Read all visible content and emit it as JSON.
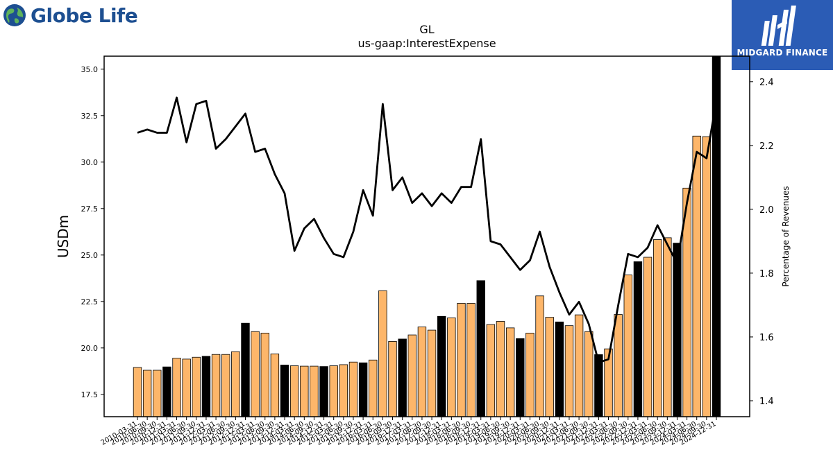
{
  "logos": {
    "left": {
      "text": "Globe Life",
      "color": "#1d4f91"
    },
    "right": {
      "text": "MIDGARD FINANCE",
      "background": "#2b5cb5"
    }
  },
  "chart_data": {
    "type": "bar",
    "title": "GL",
    "subtitle": "us-gaap:InterestExpense",
    "ylabel": "USDm",
    "y2label": "Percentage of Revenues",
    "ylim": [
      16.3,
      35.7
    ],
    "y2lim": [
      1.35,
      2.48
    ],
    "yticks": [
      "17.5",
      "20.0",
      "22.5",
      "25.0",
      "27.5",
      "30.0",
      "32.5",
      "35.0"
    ],
    "y2ticks": [
      "1.4",
      "1.6",
      "1.8",
      "2.0",
      "2.2",
      "2.4"
    ],
    "grid": false,
    "categories": [
      "2010-03-31",
      "2010-06-30",
      "2010-09-30",
      "2010-12-31",
      "2011-03-31",
      "2011-06-30",
      "2011-09-30",
      "2011-12-31",
      "2012-03-31",
      "2012-06-30",
      "2012-09-30",
      "2012-12-31",
      "2013-03-31",
      "2013-06-30",
      "2013-09-30",
      "2013-12-31",
      "2014-03-31",
      "2014-06-30",
      "2014-09-30",
      "2014-12-31",
      "2015-03-31",
      "2015-06-30",
      "2015-09-30",
      "2015-12-31",
      "2016-03-31",
      "2016-06-30",
      "2016-09-30",
      "2016-12-31",
      "2017-03-31",
      "2017-06-30",
      "2017-09-30",
      "2017-12-31",
      "2018-03-31",
      "2018-06-30",
      "2018-09-30",
      "2018-12-31",
      "2019-03-31",
      "2019-06-30",
      "2019-09-30",
      "2019-12-31",
      "2020-03-31",
      "2020-06-30",
      "2020-09-30",
      "2020-12-31",
      "2021-03-31",
      "2021-06-30",
      "2021-09-30",
      "2021-12-31",
      "2022-03-31",
      "2022-06-30",
      "2022-09-30",
      "2022-12-31",
      "2023-03-31",
      "2023-06-30",
      "2023-09-30",
      "2023-12-31",
      "2024-03-31",
      "2024-06-30",
      "2024-09-30",
      "2024-12-31"
    ],
    "series": [
      {
        "type": "bar",
        "axis": "left",
        "values": [
          18.95,
          18.8,
          18.8,
          18.98,
          19.45,
          19.4,
          19.5,
          19.55,
          19.65,
          19.65,
          19.8,
          21.33,
          20.88,
          20.8,
          19.68,
          19.08,
          19.04,
          19.02,
          19.02,
          19.0,
          19.04,
          19.1,
          19.24,
          19.2,
          19.35,
          23.08,
          20.35,
          20.48,
          20.7,
          21.13,
          20.96,
          21.7,
          21.62,
          22.4,
          22.4,
          23.62,
          21.26,
          21.43,
          21.08,
          20.5,
          20.8,
          22.8,
          21.65,
          21.4,
          21.2,
          21.78,
          20.88,
          19.64,
          19.95,
          21.8,
          23.93,
          24.64,
          24.88,
          25.83,
          25.93,
          25.64,
          28.6,
          31.4,
          31.37,
          35.9
        ],
        "colors": [
          "#fdb66a",
          "#fdb66a",
          "#fdb66a",
          "#000000",
          "#fdb66a",
          "#fdb66a",
          "#fdb66a",
          "#000000",
          "#fdb66a",
          "#fdb66a",
          "#fdb66a",
          "#000000",
          "#fdb66a",
          "#fdb66a",
          "#fdb66a",
          "#000000",
          "#fdb66a",
          "#fdb66a",
          "#fdb66a",
          "#000000",
          "#fdb66a",
          "#fdb66a",
          "#fdb66a",
          "#000000",
          "#fdb66a",
          "#fdb66a",
          "#fdb66a",
          "#000000",
          "#fdb66a",
          "#fdb66a",
          "#fdb66a",
          "#000000",
          "#fdb66a",
          "#fdb66a",
          "#fdb66a",
          "#000000",
          "#fdb66a",
          "#fdb66a",
          "#fdb66a",
          "#000000",
          "#fdb66a",
          "#fdb66a",
          "#fdb66a",
          "#000000",
          "#fdb66a",
          "#fdb66a",
          "#fdb66a",
          "#000000",
          "#fdb66a",
          "#fdb66a",
          "#fdb66a",
          "#000000",
          "#fdb66a",
          "#fdb66a",
          "#fdb66a",
          "#000000",
          "#fdb66a",
          "#fdb66a",
          "#fdb66a",
          "#000000"
        ]
      },
      {
        "type": "line",
        "axis": "right",
        "color": "#000000",
        "values": [
          2.24,
          2.25,
          2.24,
          2.24,
          2.35,
          2.21,
          2.33,
          2.34,
          2.19,
          2.22,
          2.26,
          2.3,
          2.18,
          2.19,
          2.11,
          2.05,
          1.87,
          1.94,
          1.97,
          1.91,
          1.86,
          1.85,
          1.93,
          2.06,
          1.98,
          2.33,
          2.06,
          2.1,
          2.02,
          2.05,
          2.01,
          2.05,
          2.02,
          2.07,
          2.07,
          2.22,
          1.9,
          1.89,
          1.85,
          1.81,
          1.84,
          1.93,
          1.82,
          1.74,
          1.67,
          1.71,
          1.64,
          1.52,
          1.53,
          1.7,
          1.86,
          1.85,
          1.88,
          1.95,
          1.89,
          1.83,
          2.02,
          2.18,
          2.16,
          2.34
        ]
      }
    ]
  }
}
